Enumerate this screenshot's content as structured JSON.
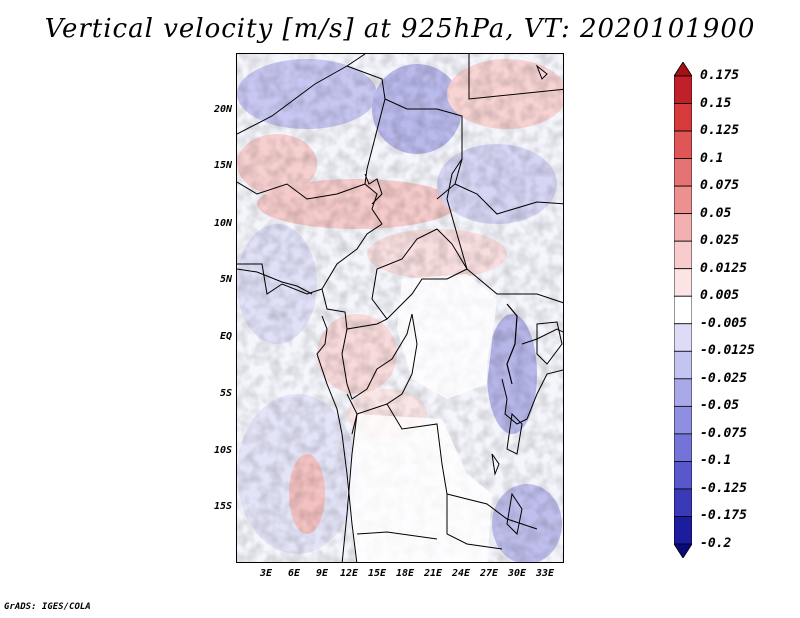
{
  "title": "Vertical velocity [m/s] at 925hPa, VT: 2020101900",
  "credit": "GrADS: IGES/COLA",
  "map": {
    "lat_labels": [
      "20N",
      "15N",
      "10N",
      "5N",
      "EQ",
      "5S",
      "10S",
      "15S"
    ],
    "lon_labels": [
      "3E",
      "6E",
      "9E",
      "12E",
      "15E",
      "18E",
      "21E",
      "24E",
      "27E",
      "30E",
      "33E"
    ]
  },
  "colorbar": {
    "labels": [
      "0.175",
      "0.15",
      "0.125",
      "0.1",
      "0.075",
      "0.05",
      "0.025",
      "0.0125",
      "0.005",
      "-0.005",
      "-0.0125",
      "-0.025",
      "-0.05",
      "-0.075",
      "-0.1",
      "-0.125",
      "-0.175",
      "-0.2"
    ],
    "colors": [
      "#a50f15",
      "#c0202a",
      "#d73a3a",
      "#e05555",
      "#e57373",
      "#ec9090",
      "#f3b0b0",
      "#f8cccc",
      "#fce4e4",
      "#ffffff",
      "#dcdcf7",
      "#c4c4f0",
      "#a9a9ea",
      "#8f8fe2",
      "#7474d8",
      "#5858cc",
      "#3a3ab8",
      "#1c1c9e",
      "#0a0a7a"
    ]
  }
}
